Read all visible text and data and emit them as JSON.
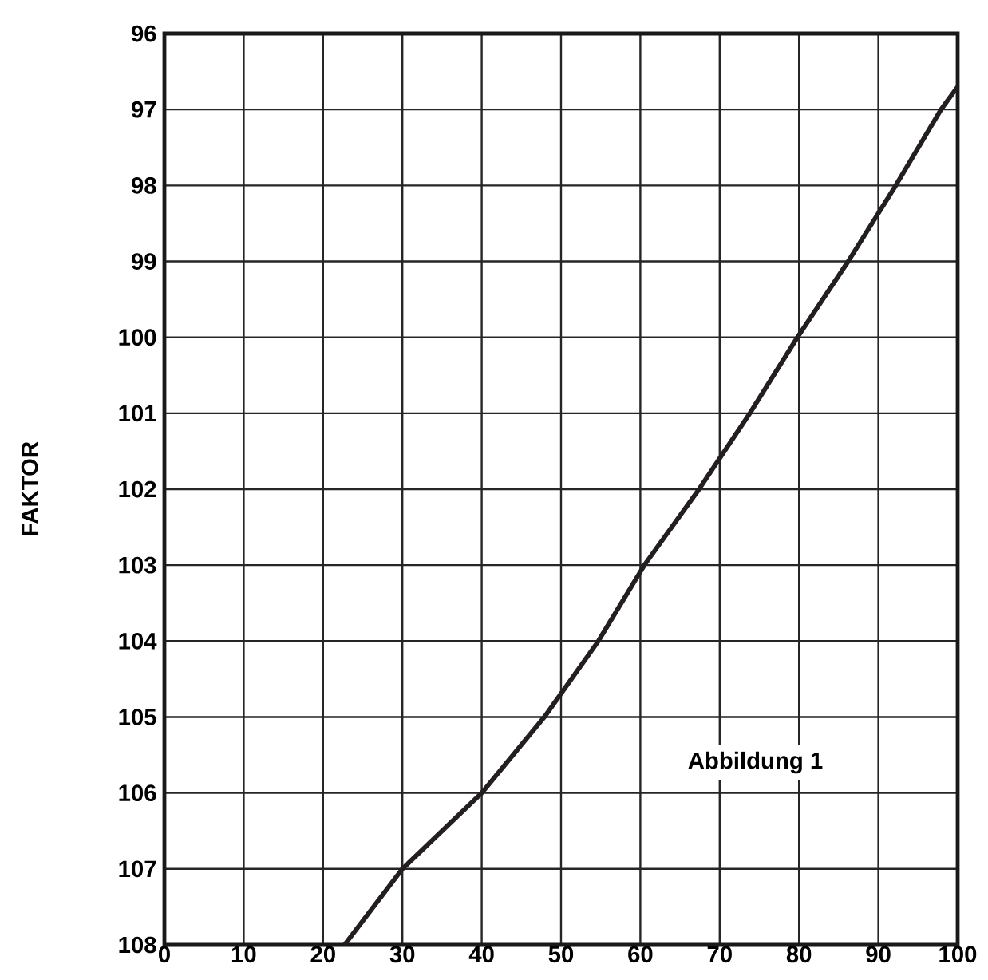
{
  "chart_data": {
    "type": "line",
    "ylabel": "FAKTOR",
    "x": [
      22.7,
      30,
      40,
      47.9,
      54.7,
      60.5,
      67.4,
      73.8,
      79.8,
      86.2,
      92.2,
      97.9,
      100
    ],
    "series": [
      {
        "color": "#231f20",
        "values": [
          108,
          107,
          106,
          105,
          104,
          103,
          102,
          101,
          100,
          99,
          98,
          97,
          96.7
        ]
      }
    ],
    "xlim": [
      0,
      100
    ],
    "xticks": [
      0,
      10,
      20,
      30,
      40,
      50,
      60,
      70,
      80,
      90,
      100
    ],
    "ylim": [
      108,
      96
    ],
    "yticks": [
      96,
      97,
      98,
      99,
      100,
      101,
      102,
      103,
      104,
      105,
      106,
      107,
      108
    ],
    "grid": true,
    "marker": "none",
    "line_style": "solid",
    "annotations": [
      "Abbildung 1"
    ]
  }
}
